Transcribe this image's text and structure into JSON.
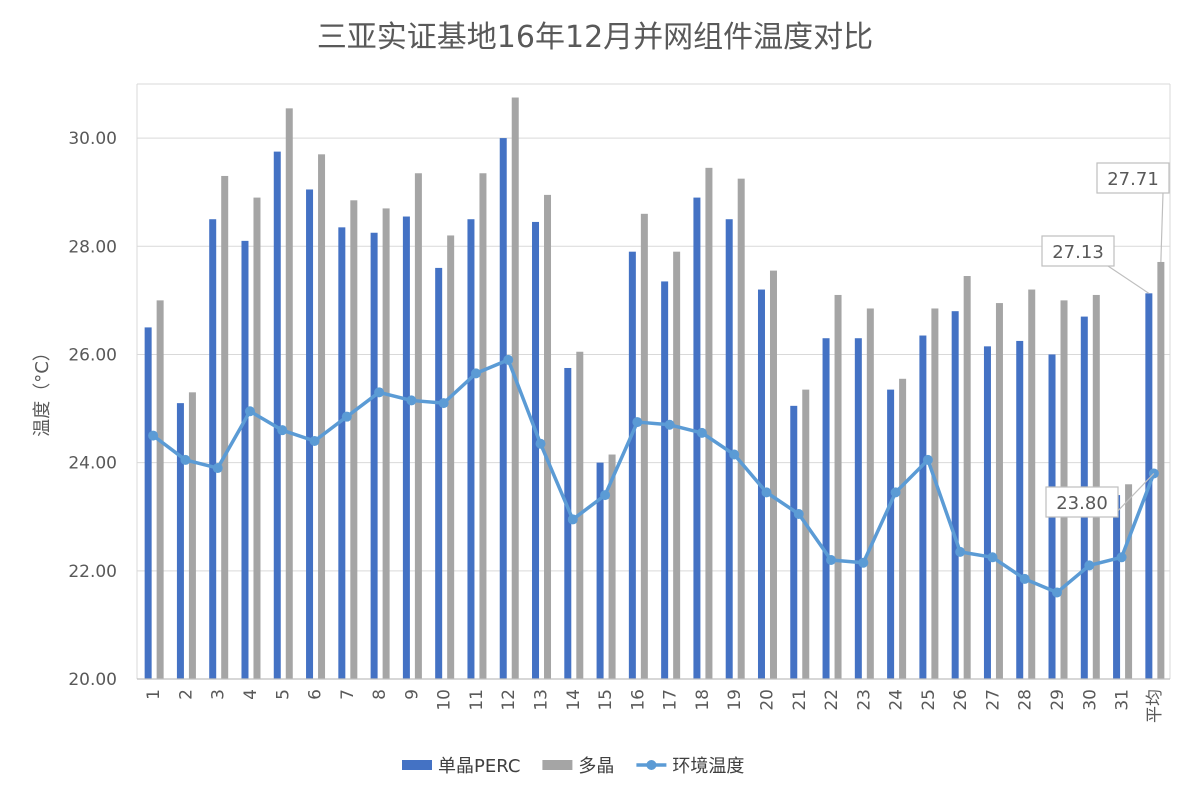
{
  "chart_data": {
    "type": "bar",
    "title": "三亚实证基地16年12月并网组件温度对比",
    "ylabel": "温度（°C）",
    "xlabel": "",
    "ylim": [
      20,
      31
    ],
    "yticks": [
      "20.00",
      "22.00",
      "24.00",
      "26.00",
      "28.00",
      "30.00"
    ],
    "grid": true,
    "legend_position": "bottom",
    "categories": [
      "1",
      "2",
      "3",
      "4",
      "5",
      "6",
      "7",
      "8",
      "9",
      "10",
      "11",
      "12",
      "13",
      "14",
      "15",
      "16",
      "17",
      "18",
      "19",
      "20",
      "21",
      "22",
      "23",
      "24",
      "25",
      "26",
      "27",
      "28",
      "29",
      "30",
      "31",
      "平均"
    ],
    "series": [
      {
        "name": "单晶PERC",
        "kind": "bar",
        "color": "#4472C4",
        "values": [
          26.5,
          25.1,
          28.5,
          28.1,
          29.75,
          29.05,
          28.35,
          28.25,
          28.55,
          27.6,
          28.5,
          30.0,
          28.45,
          25.75,
          24.0,
          27.9,
          27.35,
          28.9,
          28.5,
          27.2,
          25.05,
          26.3,
          26.3,
          25.35,
          26.35,
          26.8,
          26.15,
          26.25,
          26.0,
          26.7,
          23.4,
          27.13
        ]
      },
      {
        "name": "多晶",
        "kind": "bar",
        "color": "#A5A5A5",
        "values": [
          27.0,
          25.3,
          29.3,
          28.9,
          30.55,
          29.7,
          28.85,
          28.7,
          29.35,
          28.2,
          29.35,
          30.75,
          28.95,
          26.05,
          24.15,
          28.6,
          27.9,
          29.45,
          29.25,
          27.55,
          25.35,
          27.1,
          26.85,
          25.55,
          26.85,
          27.45,
          26.95,
          27.2,
          27.0,
          27.1,
          23.6,
          27.71
        ]
      },
      {
        "name": "环境温度",
        "kind": "line",
        "color": "#5B9BD5",
        "values": [
          24.5,
          24.05,
          23.9,
          24.95,
          24.6,
          24.4,
          24.85,
          25.3,
          25.15,
          25.1,
          25.65,
          25.9,
          24.35,
          22.95,
          23.4,
          24.75,
          24.7,
          24.55,
          24.15,
          23.45,
          23.05,
          22.2,
          22.15,
          23.45,
          24.05,
          22.35,
          22.25,
          21.85,
          21.6,
          22.1,
          22.25,
          23.8
        ]
      }
    ],
    "annotations": [
      {
        "series": 0,
        "category": "平均",
        "label": "27.13"
      },
      {
        "series": 1,
        "category": "平均",
        "label": "27.71"
      },
      {
        "series": 2,
        "category": "平均",
        "label": "23.80"
      }
    ]
  }
}
